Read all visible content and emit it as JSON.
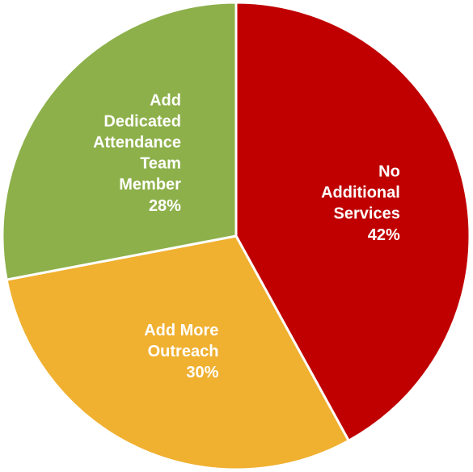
{
  "chart_data": {
    "type": "pie",
    "categories": [
      "No Additional Services",
      "Add More Outreach",
      "Add Dedicated Attendance Team Member"
    ],
    "values": [
      42,
      30,
      28
    ],
    "value_labels": [
      "42%",
      "30%",
      "28%"
    ],
    "colors": [
      "#c00000",
      "#f0b030",
      "#8db04a"
    ]
  }
}
